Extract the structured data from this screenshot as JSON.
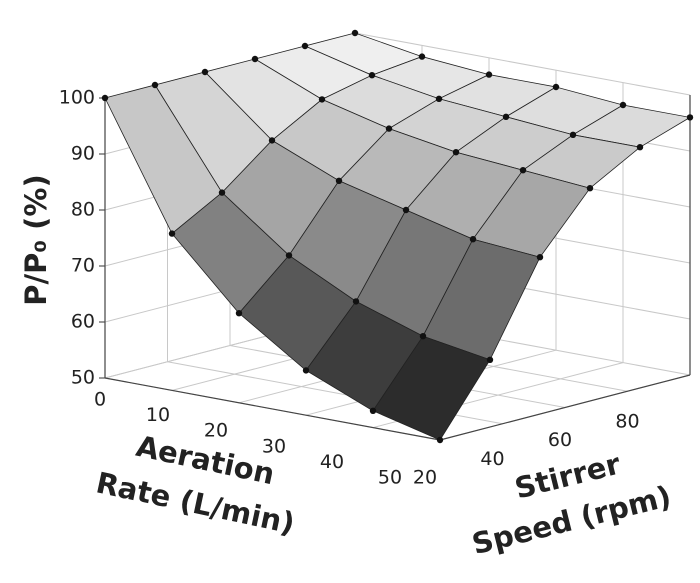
{
  "chart_data": {
    "type": "surface",
    "zlabel": "P/P₀ (%)",
    "xlabel": [
      "Aeration",
      "Rate (L/min)"
    ],
    "ylabel": [
      "Stirrer",
      "Speed (rpm)"
    ],
    "x": [
      0,
      10,
      20,
      30,
      40,
      50
    ],
    "y": [
      20,
      36,
      52,
      68,
      84,
      100
    ],
    "z": [
      [
        100,
        100,
        100,
        100,
        100,
        100
      ],
      [
        78,
        83,
        90,
        95,
        97,
        98
      ],
      [
        66,
        74,
        85,
        92,
        95,
        97
      ],
      [
        58,
        68,
        82,
        90,
        94,
        97
      ],
      [
        53,
        64,
        79,
        89,
        93,
        96
      ],
      [
        50,
        62,
        78,
        88,
        93,
        96
      ]
    ],
    "xlim": [
      0,
      50
    ],
    "ylim": [
      20,
      100
    ],
    "zlim": [
      50,
      100
    ],
    "xticks": [
      0,
      10,
      20,
      30,
      40,
      50
    ],
    "yticks": [
      20,
      40,
      60,
      80
    ],
    "zticks": [
      50,
      60,
      70,
      80,
      90,
      100
    ],
    "grid": true
  }
}
